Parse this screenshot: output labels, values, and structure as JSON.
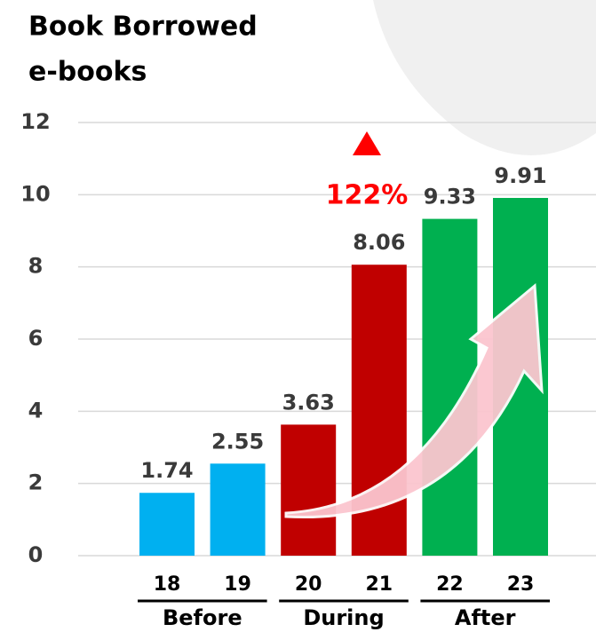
{
  "chart_data": {
    "type": "bar",
    "title": "Book Borrowed",
    "subtitle": "e-books",
    "categories": [
      "18",
      "19",
      "20",
      "21",
      "22",
      "23"
    ],
    "values": [
      1.74,
      2.55,
      3.63,
      8.06,
      9.33,
      9.91
    ],
    "colors": [
      "#00b0f0",
      "#00b0f0",
      "#c00000",
      "#c00000",
      "#00b050",
      "#00b050"
    ],
    "groups": [
      "Before",
      "During",
      "After"
    ],
    "annotation": "122%",
    "ylim": [
      0,
      12
    ],
    "yticks": [
      0,
      2,
      4,
      6,
      8,
      10,
      12
    ],
    "grid": true
  }
}
